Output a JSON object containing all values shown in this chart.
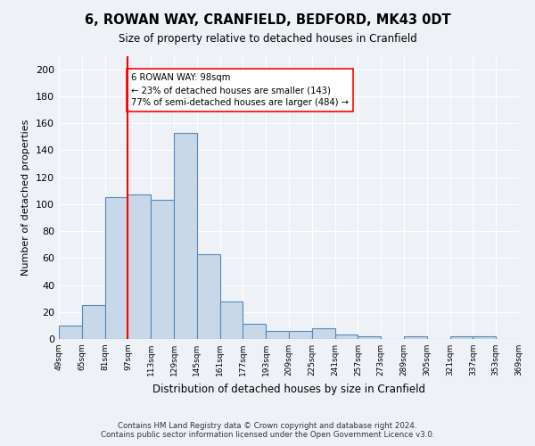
{
  "title_line1": "6, ROWAN WAY, CRANFIELD, BEDFORD, MK43 0DT",
  "title_line2": "Size of property relative to detached houses in Cranfield",
  "xlabel": "Distribution of detached houses by size in Cranfield",
  "ylabel": "Number of detached properties",
  "bin_labels": [
    "49sqm",
    "65sqm",
    "81sqm",
    "97sqm",
    "113sqm",
    "129sqm",
    "145sqm",
    "161sqm",
    "177sqm",
    "193sqm",
    "209sqm",
    "225sqm",
    "241sqm",
    "257sqm",
    "273sqm",
    "289sqm",
    "305sqm",
    "321sqm",
    "337sqm",
    "353sqm",
    "369sqm"
  ],
  "bar_values": [
    10,
    25,
    105,
    107,
    103,
    153,
    63,
    28,
    11,
    6,
    6,
    8,
    3,
    2,
    0,
    2,
    0,
    2,
    2,
    0
  ],
  "bar_color": "#c8d8e8",
  "bar_edge_color": "#5588bb",
  "ylim": [
    0,
    210
  ],
  "yticks": [
    0,
    20,
    40,
    60,
    80,
    100,
    120,
    140,
    160,
    180,
    200
  ],
  "annotation_title": "6 ROWAN WAY: 98sqm",
  "annotation_line1": "← 23% of detached houses are smaller (143)",
  "annotation_line2": "77% of semi-detached houses are larger (484) →",
  "footer_line1": "Contains HM Land Registry data © Crown copyright and database right 2024.",
  "footer_line2": "Contains public sector information licensed under the Open Government Licence v3.0.",
  "bg_color": "#eef2f7",
  "plot_bg_color": "#eef2f7"
}
